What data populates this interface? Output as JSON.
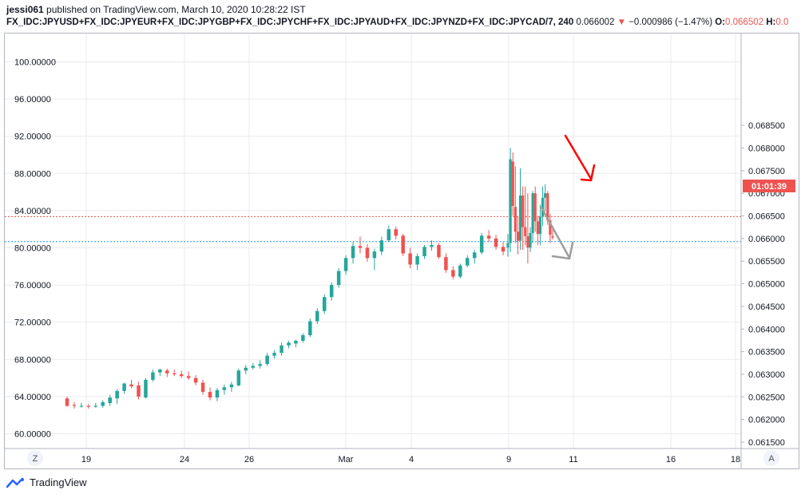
{
  "header": {
    "author": "jessi061",
    "published": " published on TradingView.com, March 10, 2020 10:28:22 IST",
    "symbol": "FX_IDC:JPYUSD+FX_IDC:JPYEUR+FX_IDC:JPYGBP+FX_IDC:JPYCHF+FX_IDC:JPYAUD+FX_IDC:JPYNZD+FX_IDC:JPYCAD/7, 240",
    "last": "0.066002",
    "change": "−0.000986 (−1.47%)",
    "open_label": "O:",
    "open_value": "0.066502",
    "high_label": "H:",
    "high_value": "0.0"
  },
  "axis_buttons": {
    "left": "Z",
    "right": "A"
  },
  "footer": {
    "brand": "TradingView"
  },
  "colors": {
    "up": "#26a69a",
    "down": "#ef5350",
    "arrow_red": "#ff0000",
    "arrow_grey": "#9e9e9e",
    "price_line": "#ef5350",
    "blue_line": "#2196f3",
    "grid": "#e9ebf0"
  },
  "chart_data": {
    "type": "candlestick",
    "interval": "240",
    "left_axis": {
      "ticks": [
        60,
        64,
        68,
        72,
        76,
        80,
        84,
        88,
        92,
        96,
        100
      ],
      "labels": [
        "60.00000",
        "64.00000",
        "68.00000",
        "72.00000",
        "76.00000",
        "80.00000",
        "84.00000",
        "88.00000",
        "92.00000",
        "96.00000",
        "100.00000"
      ]
    },
    "right_axis": {
      "ticks": [
        0.0615,
        0.062,
        0.0625,
        0.063,
        0.0635,
        0.064,
        0.0645,
        0.065,
        0.0655,
        0.066,
        0.0665,
        0.067,
        0.0675,
        0.068,
        0.0685
      ],
      "labels": [
        "0.061500",
        "0.062000",
        "0.062500",
        "0.063000",
        "0.063500",
        "0.064000",
        "0.064500",
        "0.065000",
        "0.065500",
        "0.066000",
        "0.066500",
        "0.067000",
        "0.067500",
        "0.068000",
        "0.068500"
      ]
    },
    "x_labels": [
      "19",
      "24",
      "26",
      "Mar",
      "4",
      "9",
      "11",
      "16",
      "18"
    ],
    "price_tag": "01:01:39",
    "last_price": 0.066002,
    "open_price": 0.066502,
    "candles": [
      [
        63.8,
        64.0,
        62.9,
        63.0
      ],
      [
        63.1,
        63.4,
        62.7,
        63.0
      ],
      [
        63.0,
        63.3,
        62.8,
        63.0
      ],
      [
        63.0,
        63.2,
        62.7,
        62.9
      ],
      [
        62.9,
        63.3,
        62.8,
        63.0
      ],
      [
        63.0,
        63.6,
        62.8,
        63.4
      ],
      [
        63.3,
        64.2,
        63.0,
        63.9
      ],
      [
        63.8,
        64.8,
        63.2,
        64.6
      ],
      [
        64.6,
        65.5,
        64.3,
        65.4
      ],
      [
        65.3,
        65.8,
        64.9,
        65.1
      ],
      [
        65.2,
        65.6,
        63.7,
        64.0
      ],
      [
        63.9,
        66.0,
        63.8,
        65.8
      ],
      [
        65.8,
        66.9,
        65.6,
        66.6
      ],
      [
        66.6,
        67.0,
        66.2,
        66.9
      ],
      [
        66.8,
        67.0,
        66.1,
        66.5
      ],
      [
        66.5,
        66.9,
        66.2,
        66.4
      ],
      [
        66.4,
        66.8,
        66.0,
        66.2
      ],
      [
        66.2,
        66.7,
        65.8,
        66.0
      ],
      [
        66.0,
        66.3,
        65.2,
        65.5
      ],
      [
        65.5,
        65.8,
        64.2,
        64.5
      ],
      [
        64.5,
        65.0,
        63.6,
        63.9
      ],
      [
        63.9,
        64.9,
        63.5,
        64.7
      ],
      [
        64.7,
        65.3,
        64.2,
        65.0
      ],
      [
        65.0,
        65.6,
        64.5,
        65.3
      ],
      [
        65.2,
        67.0,
        65.1,
        66.8
      ],
      [
        66.8,
        67.4,
        66.4,
        67.1
      ],
      [
        67.1,
        67.6,
        66.9,
        67.3
      ],
      [
        67.3,
        67.9,
        67.0,
        67.5
      ],
      [
        67.5,
        68.7,
        67.3,
        68.4
      ],
      [
        68.4,
        69.0,
        68.1,
        68.7
      ],
      [
        68.7,
        69.8,
        68.4,
        69.5
      ],
      [
        69.5,
        70.0,
        69.2,
        69.8
      ],
      [
        69.7,
        70.1,
        69.3,
        70.0
      ],
      [
        70.0,
        70.8,
        69.8,
        70.6
      ],
      [
        70.6,
        72.4,
        70.4,
        72.1
      ],
      [
        72.1,
        73.5,
        71.8,
        73.2
      ],
      [
        73.2,
        75.0,
        72.9,
        74.7
      ],
      [
        74.7,
        76.3,
        74.3,
        76.0
      ],
      [
        76.0,
        77.8,
        75.7,
        77.5
      ],
      [
        77.5,
        79.2,
        77.1,
        78.9
      ],
      [
        78.9,
        80.6,
        78.3,
        80.2
      ],
      [
        80.2,
        81.2,
        79.4,
        80.0
      ],
      [
        80.0,
        80.4,
        78.5,
        78.9
      ],
      [
        78.9,
        79.9,
        77.6,
        79.6
      ],
      [
        79.6,
        81.2,
        79.2,
        80.8
      ],
      [
        80.8,
        82.4,
        80.6,
        82.0
      ],
      [
        82.0,
        82.3,
        80.9,
        81.3
      ],
      [
        81.3,
        81.5,
        79.1,
        79.4
      ],
      [
        79.4,
        80.0,
        77.8,
        78.2
      ],
      [
        78.2,
        79.4,
        77.6,
        79.1
      ],
      [
        79.1,
        80.3,
        78.8,
        80.1
      ],
      [
        80.1,
        80.8,
        79.7,
        80.3
      ],
      [
        80.3,
        80.5,
        78.8,
        79.0
      ],
      [
        79.0,
        79.4,
        77.3,
        77.6
      ],
      [
        77.6,
        78.0,
        76.6,
        76.9
      ],
      [
        76.9,
        78.3,
        76.7,
        78.1
      ],
      [
        78.1,
        79.2,
        77.9,
        78.9
      ],
      [
        78.9,
        79.8,
        78.3,
        79.5
      ],
      [
        79.5,
        81.6,
        79.3,
        81.3
      ],
      [
        81.3,
        81.9,
        80.6,
        81.0
      ],
      [
        81.0,
        81.4,
        79.8,
        80.1
      ],
      [
        80.1,
        80.6,
        79.2,
        79.6
      ]
    ],
    "arrows": [
      {
        "color": "red",
        "from_time": "9",
        "to_time": "11",
        "direction": "down"
      },
      {
        "color": "grey",
        "from_time": "9",
        "to_time": "11",
        "direction": "down"
      }
    ]
  }
}
